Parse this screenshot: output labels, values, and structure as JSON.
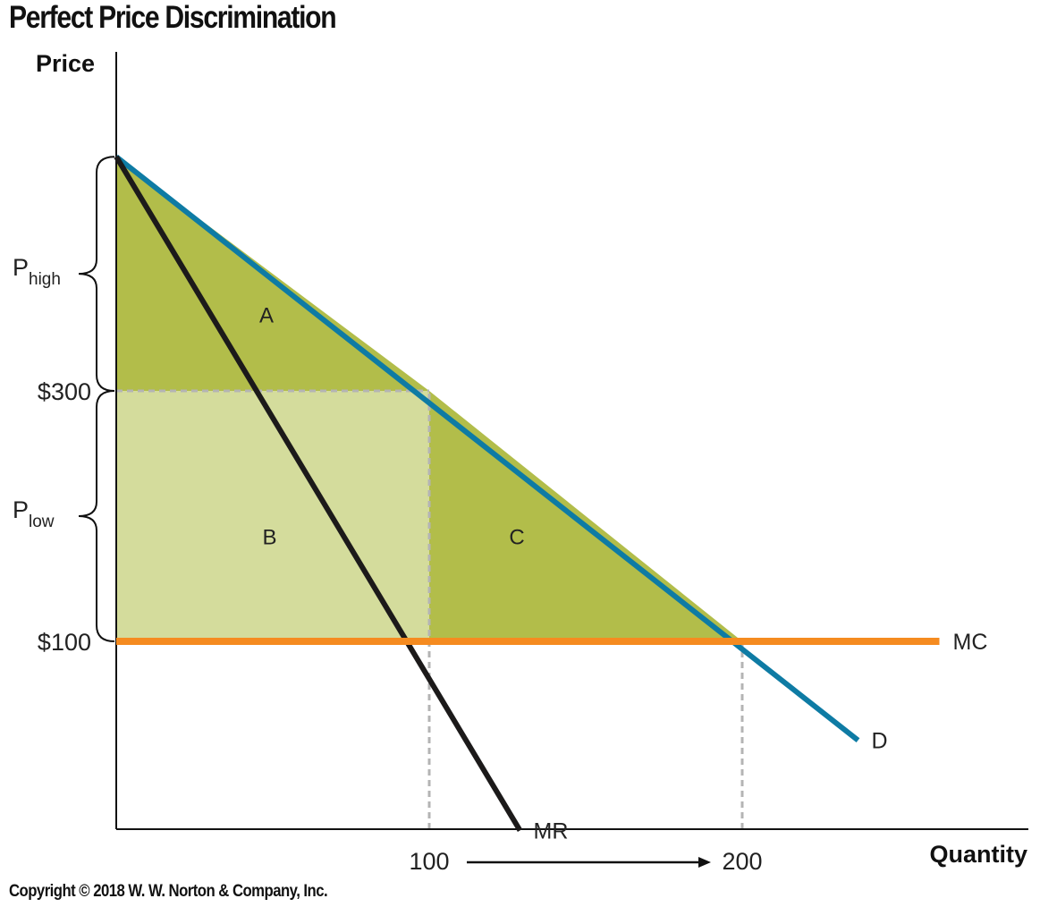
{
  "title": "Perfect Price Discrimination",
  "copyright": "Copyright © 2018 W. W. Norton & Company, Inc.",
  "chart_data": {
    "type": "line",
    "title": "Perfect Price Discrimination",
    "xlabel": "Quantity",
    "ylabel": "Price",
    "xlim": [
      0,
      270
    ],
    "ylim": [
      -50,
      450
    ],
    "grid": false,
    "x_ticks": [
      {
        "value": 100,
        "label": "100"
      },
      {
        "value": 200,
        "label": "200"
      }
    ],
    "y_ticks": [
      {
        "value": 300,
        "label": "$300"
      },
      {
        "value": 100,
        "label": "$100"
      }
    ],
    "series": [
      {
        "name": "D",
        "color": "#0e7ba4",
        "points": [
          [
            0,
            487
          ],
          [
            237,
            21
          ]
        ]
      },
      {
        "name": "MR",
        "color": "#1c1a1a",
        "points": [
          [
            0,
            487
          ],
          [
            129,
            -51
          ]
        ]
      },
      {
        "name": "MC",
        "color": "#f58b20",
        "points": [
          [
            0,
            100
          ],
          [
            263,
            100
          ]
        ]
      }
    ],
    "reference_lines": [
      {
        "orientation": "horizontal",
        "y": 300,
        "from_x": 0,
        "to_x": 100,
        "style": "dashed",
        "color": "#b4b4b4"
      },
      {
        "orientation": "vertical",
        "x": 100,
        "from_y": -50,
        "to_y": 300,
        "style": "dashed",
        "color": "#b4b4b4"
      },
      {
        "orientation": "vertical",
        "x": 200,
        "from_y": -50,
        "to_y": 100,
        "style": "dashed",
        "color": "#b4b4b4"
      }
    ],
    "regions": [
      {
        "label": "A",
        "color": "#b2bd4a",
        "label_at": [
          48,
          359
        ],
        "polygon": [
          [
            0,
            487
          ],
          [
            100,
            300
          ],
          [
            0,
            300
          ]
        ]
      },
      {
        "label": "B",
        "color": "#d4dc9c",
        "label_at": [
          49,
          182
        ],
        "polygon": [
          [
            0,
            300
          ],
          [
            100,
            300
          ],
          [
            100,
            100
          ],
          [
            0,
            100
          ]
        ]
      },
      {
        "label": "C",
        "color": "#b2bd4a",
        "label_at": [
          128,
          182
        ],
        "polygon": [
          [
            100,
            300
          ],
          [
            200,
            100
          ],
          [
            100,
            100
          ]
        ]
      }
    ],
    "braces": [
      {
        "label_main": "P",
        "label_sub": "high",
        "from_y": 300,
        "to_y": 487
      },
      {
        "label_main": "P",
        "label_sub": "low",
        "from_y": 100,
        "to_y": 300
      }
    ],
    "annotations": [
      {
        "type": "arrow",
        "from_x": 112,
        "to_x": 190,
        "y": -75,
        "color": "#111"
      }
    ]
  }
}
